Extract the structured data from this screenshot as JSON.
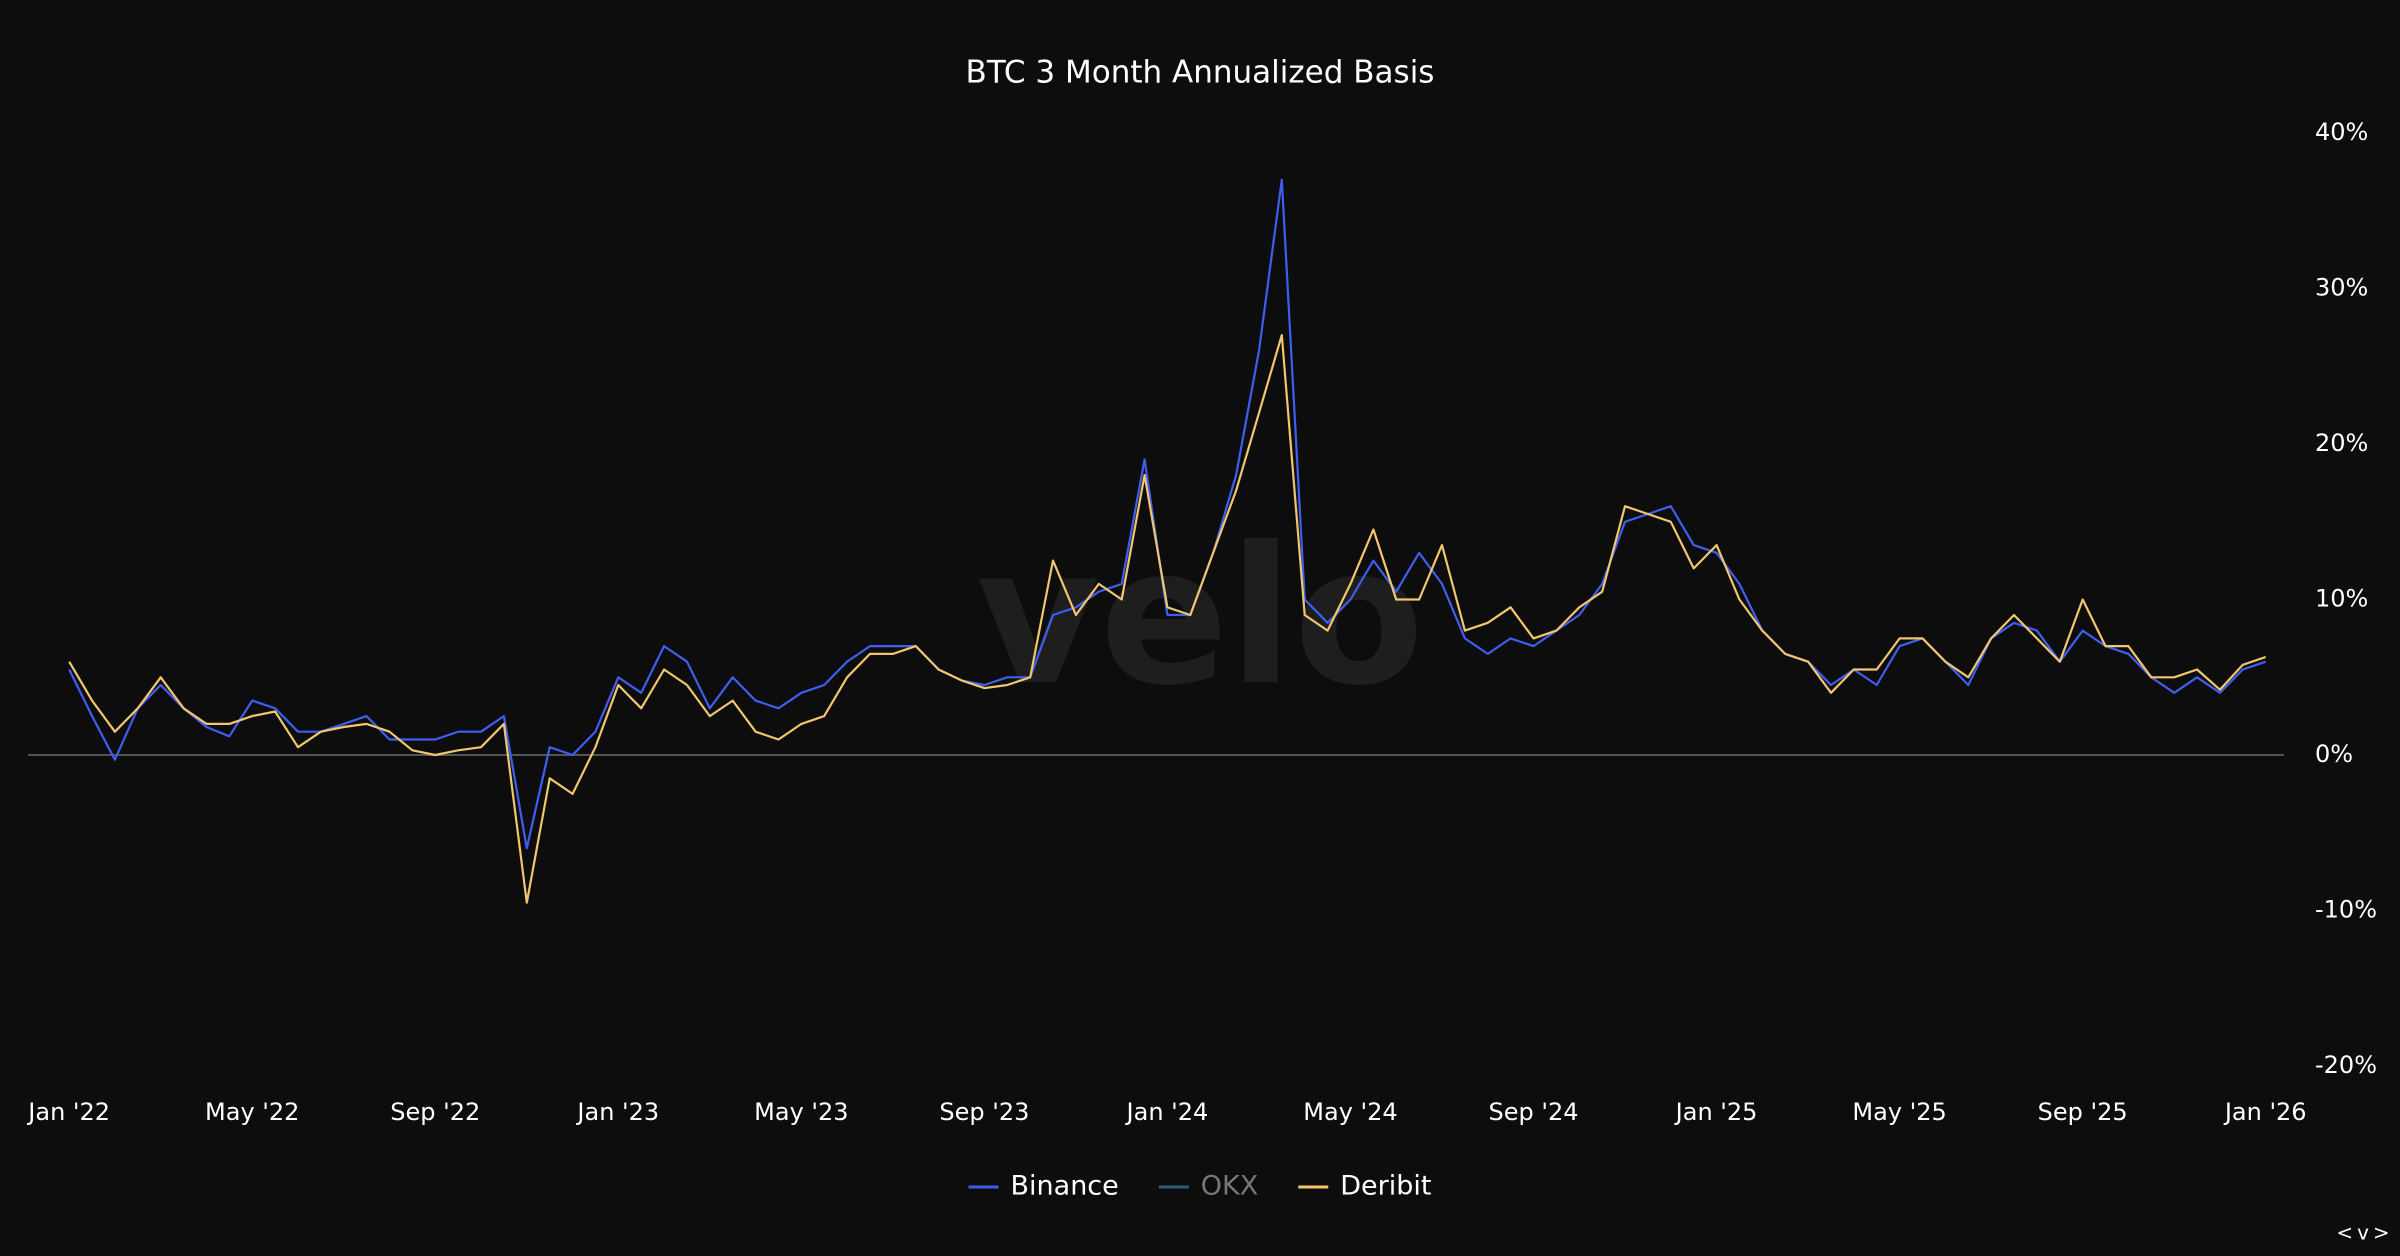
{
  "chart_data": {
    "type": "line",
    "title": "BTC 3 Month Annualized Basis",
    "watermark": "velo",
    "corner_label": "<v>",
    "x": [
      0,
      0.5,
      1,
      1.5,
      2,
      2.5,
      3,
      3.5,
      4,
      4.5,
      5,
      5.5,
      6,
      6.5,
      7,
      7.5,
      8,
      8.5,
      9,
      9.5,
      10,
      10.5,
      11,
      11.5,
      12,
      12.5,
      13,
      13.5,
      14,
      14.5,
      15,
      15.5,
      16,
      16.5,
      17,
      17.5,
      18,
      18.5,
      19,
      19.5,
      20,
      20.5,
      21,
      21.5,
      22,
      22.5,
      23,
      23.5,
      24,
      24.5,
      25,
      25.5,
      26,
      26.5,
      27,
      27.5,
      28,
      28.5,
      29,
      29.5,
      30,
      30.5,
      31,
      31.5,
      32,
      32.5,
      33,
      33.5,
      34,
      34.5,
      35,
      35.5,
      36,
      36.5,
      37,
      37.5,
      38,
      38.5,
      39,
      39.5,
      40,
      40.5,
      41,
      41.5,
      42,
      42.5,
      43,
      43.5,
      44,
      44.5,
      45,
      45.5,
      46,
      46.5,
      47,
      47.5,
      48
    ],
    "series": [
      {
        "name": "Binance",
        "color": "#3f5ef0",
        "values": [
          5.5,
          2.5,
          -0.3,
          3,
          4.5,
          3,
          1.8,
          1.2,
          3.5,
          3,
          1.5,
          1.5,
          2,
          2.5,
          1,
          1,
          1,
          1.5,
          1.5,
          2.5,
          -6,
          0.5,
          0,
          1.5,
          5,
          4,
          7,
          6,
          3,
          5,
          3.5,
          3,
          4,
          4.5,
          6,
          7,
          7,
          7,
          5.5,
          4.8,
          4.5,
          5,
          5,
          9,
          9.5,
          10.5,
          11,
          19,
          9,
          9,
          13,
          18,
          26,
          37,
          10,
          8.5,
          10,
          12.5,
          10.5,
          13,
          11,
          7.5,
          6.5,
          7.5,
          7,
          8,
          9,
          11,
          15,
          15.5,
          16,
          13.5,
          13,
          11,
          8,
          6.5,
          6,
          4.5,
          5.5,
          4.5,
          7,
          7.5,
          6,
          4.5,
          7.5,
          8.5,
          8,
          6,
          8,
          7,
          6.5,
          5,
          4,
          5,
          4,
          5.5,
          6
        ]
      },
      {
        "name": "OKX",
        "color": "#2b5f72",
        "visible": false
      },
      {
        "name": "Deribit",
        "color": "#f2c66d",
        "values": [
          6,
          3.5,
          1.5,
          3,
          5,
          3,
          2,
          2,
          2.5,
          2.8,
          0.5,
          1.5,
          1.8,
          2,
          1.5,
          0.3,
          0,
          0.3,
          0.5,
          2,
          -9.5,
          -1.5,
          -2.5,
          0.5,
          4.5,
          3,
          5.5,
          4.5,
          2.5,
          3.5,
          1.5,
          1,
          2,
          2.5,
          5,
          6.5,
          6.5,
          7,
          5.5,
          4.8,
          4.3,
          4.5,
          5,
          12.5,
          9,
          11,
          10,
          18,
          9.5,
          9,
          13,
          17,
          22,
          27,
          9,
          8,
          11,
          14.5,
          10,
          10,
          13.5,
          8,
          8.5,
          9.5,
          7.5,
          8,
          9.5,
          10.5,
          16,
          15.5,
          15,
          12,
          13.5,
          10,
          8,
          6.5,
          6,
          4,
          5.5,
          5.5,
          7.5,
          7.5,
          6,
          5,
          7.5,
          9,
          7.5,
          6,
          10,
          7,
          7,
          5,
          5,
          5.5,
          4.2,
          5.8,
          6.3
        ]
      }
    ],
    "xlim": [
      -0.9,
      48.4
    ],
    "xticks": [
      {
        "value": 0,
        "label": "Jan '22"
      },
      {
        "value": 4,
        "label": "May '22"
      },
      {
        "value": 8,
        "label": "Sep '22"
      },
      {
        "value": 12,
        "label": "Jan '23"
      },
      {
        "value": 16,
        "label": "May '23"
      },
      {
        "value": 20,
        "label": "Sep '23"
      },
      {
        "value": 24,
        "label": "Jan '24"
      },
      {
        "value": 28,
        "label": "May '24"
      },
      {
        "value": 32,
        "label": "Sep '24"
      },
      {
        "value": 36,
        "label": "Jan '25"
      },
      {
        "value": 40,
        "label": "May '25"
      },
      {
        "value": 44,
        "label": "Sep '25"
      },
      {
        "value": 48,
        "label": "Jan '26"
      }
    ],
    "ylim": [
      -20,
      40
    ],
    "yticks": [
      {
        "value": 40,
        "label": "40%"
      },
      {
        "value": 30,
        "label": "30%"
      },
      {
        "value": 20,
        "label": "20%"
      },
      {
        "value": 10,
        "label": "10%"
      },
      {
        "value": 0,
        "label": "0%"
      },
      {
        "value": -10,
        "label": "-10%"
      },
      {
        "value": -20,
        "label": "-20%"
      }
    ],
    "zero_line": true,
    "legend": "bottom"
  }
}
